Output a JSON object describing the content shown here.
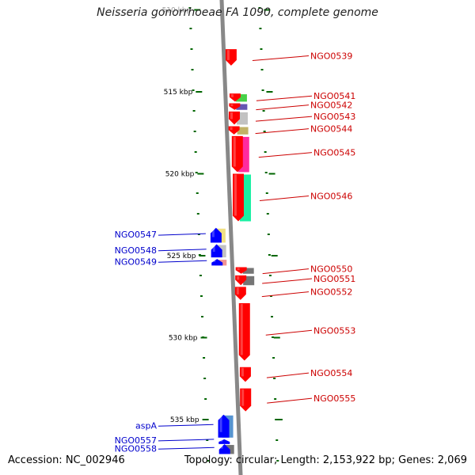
{
  "title": "Neisseria gonorrhoeae FA 1090, complete genome",
  "accession": "Accession: NC_002946",
  "topology": "Topology: circular; Length: 2,153,922 bp; Genes: 2,069",
  "colors": {
    "forward_label": "#cc0000",
    "reverse_label": "#0000cc",
    "tick": "#006600",
    "backbone": "#888888"
  },
  "scale": [
    {
      "label": "510 kbp",
      "kbp": 510
    },
    {
      "label": "515 kbp",
      "kbp": 515
    },
    {
      "label": "520 kbp",
      "kbp": 520
    },
    {
      "label": "525 kbp",
      "kbp": 525
    },
    {
      "label": "530 kbp",
      "kbp": 530
    },
    {
      "label": "535 kbp",
      "kbp": 535
    }
  ],
  "genes": [
    {
      "name": "NGO0539",
      "strand": "forward",
      "start_kbp": 512.4,
      "end_kbp": 513.4,
      "color": "#ff0000"
    },
    {
      "name": "NGO0541",
      "strand": "forward",
      "start_kbp": 515.1,
      "end_kbp": 515.6,
      "color": "#ff0000"
    },
    {
      "name": "NGO0542",
      "strand": "forward",
      "start_kbp": 515.7,
      "end_kbp": 516.1,
      "color": "#ff0000"
    },
    {
      "name": "NGO0543",
      "strand": "forward",
      "start_kbp": 516.2,
      "end_kbp": 517.0,
      "color": "#ff0000"
    },
    {
      "name": "NGO0544",
      "strand": "forward",
      "start_kbp": 517.1,
      "end_kbp": 517.6,
      "color": "#ff0000"
    },
    {
      "name": "NGO0545",
      "strand": "forward",
      "start_kbp": 517.7,
      "end_kbp": 519.9,
      "color": "#ff0000"
    },
    {
      "name": "NGO0546",
      "strand": "forward",
      "start_kbp": 520.0,
      "end_kbp": 522.9,
      "color": "#ff0000"
    },
    {
      "name": "NGO0547",
      "strand": "reverse",
      "start_kbp": 523.3,
      "end_kbp": 524.2,
      "color": "#0000ff"
    },
    {
      "name": "NGO0548",
      "strand": "reverse",
      "start_kbp": 524.3,
      "end_kbp": 525.1,
      "color": "#0000ff"
    },
    {
      "name": "NGO0549",
      "strand": "reverse",
      "start_kbp": 525.2,
      "end_kbp": 525.6,
      "color": "#0000ff"
    },
    {
      "name": "NGO0550",
      "strand": "forward",
      "start_kbp": 525.7,
      "end_kbp": 526.1,
      "color": "#ff0000"
    },
    {
      "name": "NGO0551",
      "strand": "forward",
      "start_kbp": 526.2,
      "end_kbp": 526.8,
      "color": "#ff0000"
    },
    {
      "name": "NGO0552",
      "strand": "forward",
      "start_kbp": 526.9,
      "end_kbp": 527.7,
      "color": "#ff0000"
    },
    {
      "name": "NGO0553",
      "strand": "forward",
      "start_kbp": 527.9,
      "end_kbp": 531.4,
      "color": "#ff0000"
    },
    {
      "name": "NGO0554",
      "strand": "forward",
      "start_kbp": 531.8,
      "end_kbp": 532.7,
      "color": "#ff0000"
    },
    {
      "name": "NGO0555",
      "strand": "forward",
      "start_kbp": 533.1,
      "end_kbp": 534.5,
      "color": "#ff0000"
    },
    {
      "name": "aspA",
      "strand": "reverse",
      "start_kbp": 534.7,
      "end_kbp": 536.1,
      "color": "#0000ff"
    },
    {
      "name": "NGO0557",
      "strand": "reverse",
      "start_kbp": 536.2,
      "end_kbp": 536.4,
      "color": "#0000ff"
    },
    {
      "name": "NGO0558",
      "strand": "reverse",
      "start_kbp": 536.5,
      "end_kbp": 537.1,
      "color": "#0000ff"
    }
  ],
  "features": [
    {
      "name": "cog-0541",
      "start_kbp": 515.1,
      "end_kbp": 515.6,
      "color": "#33cc33"
    },
    {
      "name": "cog-0542",
      "start_kbp": 515.7,
      "end_kbp": 516.1,
      "color": "#5544aa"
    },
    {
      "name": "cog-0543",
      "start_kbp": 516.2,
      "end_kbp": 517.0,
      "color": "#bbbbbb"
    },
    {
      "name": "cog-0544",
      "start_kbp": 517.1,
      "end_kbp": 517.6,
      "color": "#bbaa55"
    },
    {
      "name": "cog-0545",
      "start_kbp": 517.7,
      "end_kbp": 519.9,
      "color": "#ff1493"
    },
    {
      "name": "cog-0546",
      "start_kbp": 520.0,
      "end_kbp": 522.9,
      "color": "#00ee99"
    },
    {
      "name": "cog-0547",
      "start_kbp": 523.3,
      "end_kbp": 524.2,
      "color": "#eedd77"
    },
    {
      "name": "cog-0548",
      "start_kbp": 524.3,
      "end_kbp": 525.1,
      "color": "#bbbbbb"
    },
    {
      "name": "cog-0549",
      "start_kbp": 525.2,
      "end_kbp": 525.6,
      "color": "#ee8888"
    },
    {
      "name": "cog-0550",
      "start_kbp": 525.7,
      "end_kbp": 526.1,
      "color": "#666666"
    },
    {
      "name": "cog-0551",
      "start_kbp": 526.2,
      "end_kbp": 526.8,
      "color": "#666666"
    },
    {
      "name": "cog-aspA",
      "start_kbp": 534.7,
      "end_kbp": 536.1,
      "color": "#4488cc"
    },
    {
      "name": "cog-0558",
      "start_kbp": 536.5,
      "end_kbp": 537.1,
      "color": "#666666"
    }
  ]
}
